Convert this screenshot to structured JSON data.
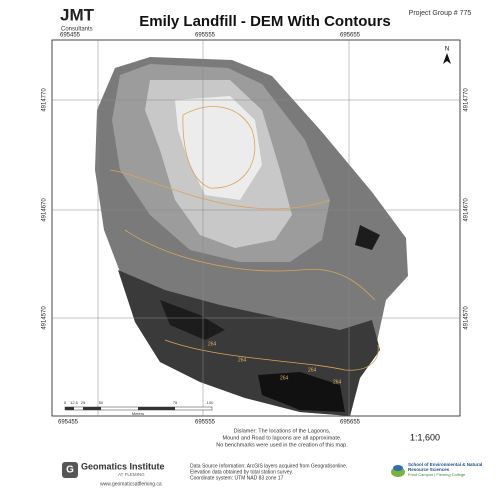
{
  "header": {
    "logo": "JMT",
    "logo_sub": "Consultants",
    "title": "Emily Landfill - DEM With Contours",
    "project": "Project Group # 775"
  },
  "grid": {
    "top": [
      "695455",
      "695555",
      "695655"
    ],
    "bottom": [
      "695455",
      "695555",
      "695655"
    ],
    "left": [
      "4914770",
      "4914670",
      "4914570"
    ],
    "right": [
      "4914770",
      "4914670",
      "4914570"
    ]
  },
  "north": "N",
  "contours": [
    "264",
    "264",
    "264",
    "264",
    "264"
  ],
  "scale_bar": {
    "labels": [
      "0",
      "12.5",
      "25",
      "50",
      "75",
      "100"
    ],
    "units": "Meters"
  },
  "scale": "1:1,600",
  "disclaimer": [
    "Dislamer: The locations of the Lagoons,",
    "Mound and Road to lagoons are all approximate.",
    "No benchmarks were used in the creation of this map."
  ],
  "data_source": [
    "Data Source Information: ArcGIS layers acquired from Geogratisonline.",
    "Elevation data obtained by total station survey.",
    "Coordinate system: UTM NAD 83 zone 17"
  ],
  "footer": {
    "institute": "Geomatics Institute",
    "institute_sub": "AT FLEMING",
    "url": "www.geomaticsatfleming.ca",
    "school": "School of Environmental & Natural Resource Sciences",
    "campus": "Frost Campus | Fleming College"
  }
}
